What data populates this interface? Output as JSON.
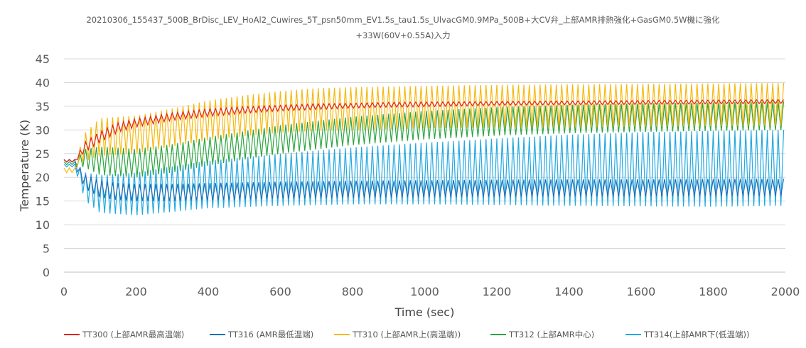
{
  "chart_data": {
    "type": "line",
    "title_line1": "20210306_155437_500B_BrDisc_LEV_HoAl2_Cuwires_5T_psn50mm_EV1.5s_tau1.5s_UlvacGM0.9MPa_500B+大CV弁_上部AMR排熱強化+GasGM0.5W機に強化",
    "title_line2": "+33W(60V+0.55A)入力",
    "xlabel": "Time (sec)",
    "ylabel": "Temperature (K)",
    "xlim": [
      0,
      2000
    ],
    "ylim": [
      0,
      45
    ],
    "xticks": [
      0,
      200,
      400,
      600,
      800,
      1000,
      1200,
      1400,
      1600,
      1800,
      2000
    ],
    "yticks": [
      0,
      5,
      10,
      15,
      20,
      25,
      30,
      35,
      40,
      45
    ],
    "grid": "horizontal",
    "legend_position": "bottom",
    "series": [
      {
        "name": "TT300 (上部AMR最高温端)",
        "color": "#e3231d",
        "x": [
          0,
          30,
          40,
          60,
          100,
          150,
          200,
          300,
          400,
          500,
          600,
          700,
          800,
          900,
          1000,
          1200,
          1400,
          1600,
          1800,
          2000
        ],
        "mean": [
          23.5,
          23.5,
          24.5,
          26.5,
          28.5,
          30.5,
          31.5,
          32.8,
          33.6,
          34.2,
          34.6,
          34.9,
          35.1,
          35.3,
          35.4,
          35.6,
          35.7,
          35.8,
          35.9,
          36.0
        ],
        "amplitude": [
          0.2,
          0.2,
          0.6,
          1.0,
          1.2,
          1.0,
          0.9,
          0.8,
          0.8,
          0.7,
          0.6,
          0.6,
          0.5,
          0.5,
          0.5,
          0.4,
          0.4,
          0.4,
          0.4,
          0.4
        ]
      },
      {
        "name": "TT316 (AMR最低温端)",
        "color": "#1f6fb5",
        "x": [
          0,
          30,
          40,
          60,
          100,
          150,
          200,
          300,
          400,
          600,
          800,
          1000,
          1200,
          1400,
          1600,
          1800,
          2000
        ],
        "mean": [
          23.5,
          23.5,
          21.5,
          19.0,
          17.5,
          17.0,
          16.8,
          16.8,
          17.0,
          17.3,
          17.5,
          17.6,
          17.7,
          17.8,
          17.8,
          17.9,
          17.9
        ],
        "amplitude": [
          0.3,
          0.3,
          1.0,
          1.5,
          1.8,
          1.8,
          1.8,
          1.8,
          1.8,
          1.8,
          1.8,
          1.8,
          1.8,
          1.8,
          1.8,
          1.8,
          1.8
        ]
      },
      {
        "name": "TT310 (上部AMR上(高温端))",
        "color": "#f6b80e",
        "x": [
          0,
          30,
          40,
          60,
          100,
          200,
          300,
          400,
          500,
          600,
          700,
          800,
          1000,
          1200,
          1400,
          1600,
          1800,
          2000
        ],
        "mean": [
          21.5,
          21.5,
          24.0,
          26.5,
          28.5,
          29.0,
          30.5,
          32.0,
          33.0,
          33.8,
          34.3,
          34.5,
          34.8,
          35.0,
          35.1,
          35.2,
          35.3,
          35.4
        ],
        "amplitude": [
          0.5,
          0.5,
          1.5,
          3.0,
          4.0,
          4.0,
          4.0,
          4.2,
          4.3,
          4.4,
          4.5,
          4.5,
          4.5,
          4.5,
          4.5,
          4.5,
          4.5,
          4.5
        ]
      },
      {
        "name": "TT312 (上部AMR中心)",
        "color": "#2ba540",
        "x": [
          0,
          30,
          40,
          60,
          100,
          200,
          300,
          400,
          600,
          800,
          1000,
          1200,
          1400,
          1600,
          1800,
          2000
        ],
        "mean": [
          23.0,
          23.0,
          23.5,
          24.0,
          23.5,
          23.0,
          24.0,
          25.5,
          28.0,
          29.8,
          31.0,
          31.8,
          32.3,
          32.6,
          32.8,
          33.0
        ],
        "amplitude": [
          0.3,
          0.3,
          1.0,
          2.0,
          3.0,
          3.0,
          3.0,
          3.0,
          3.0,
          3.0,
          3.0,
          3.0,
          3.0,
          3.0,
          3.0,
          3.0
        ]
      },
      {
        "name": "TT314(上部AMR下(低温端))",
        "color": "#22a8e0",
        "x": [
          0,
          30,
          40,
          60,
          100,
          200,
          300,
          400,
          600,
          800,
          1000,
          1200,
          1400,
          1600,
          1800,
          2000
        ],
        "mean": [
          22.5,
          22.5,
          21.0,
          18.0,
          16.5,
          16.5,
          17.5,
          18.5,
          19.5,
          20.3,
          20.8,
          21.2,
          21.5,
          21.7,
          21.8,
          22.0
        ],
        "amplitude": [
          0.3,
          0.3,
          1.5,
          3.0,
          4.0,
          4.5,
          4.8,
          5.0,
          5.5,
          6.0,
          6.5,
          7.0,
          7.5,
          7.8,
          8.0,
          8.0
        ]
      }
    ],
    "oscillation_period_sec": 15
  }
}
